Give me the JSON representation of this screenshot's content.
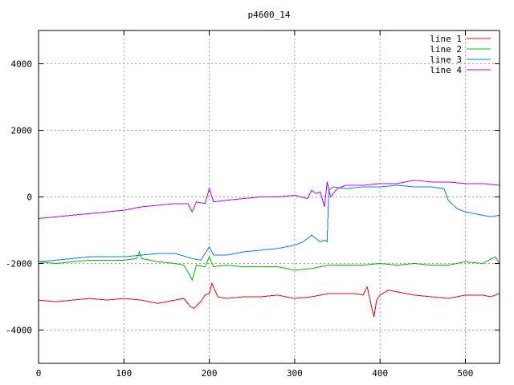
{
  "chart_data": {
    "type": "line",
    "title": "p4600_14",
    "xlabel": "",
    "ylabel": "",
    "xlim": [
      0,
      540
    ],
    "ylim": [
      -5000,
      5000
    ],
    "x_ticks": [
      0,
      100,
      200,
      300,
      400,
      500
    ],
    "y_ticks": [
      -4000,
      -2000,
      0,
      2000,
      4000
    ],
    "grid": true,
    "legend_position": "top-right",
    "series": [
      {
        "name": "line 1",
        "color": "#ff0000",
        "x": [
          0,
          20,
          40,
          60,
          80,
          100,
          120,
          140,
          160,
          170,
          178,
          182,
          190,
          195,
          200,
          203,
          210,
          220,
          240,
          260,
          280,
          300,
          320,
          340,
          360,
          370,
          380,
          385,
          390,
          393,
          396,
          400,
          410,
          420,
          440,
          460,
          480,
          500,
          520,
          530,
          540
        ],
        "y": [
          -3100,
          -3150,
          -3100,
          -3050,
          -3100,
          -3050,
          -3100,
          -3200,
          -3100,
          -3050,
          -3300,
          -3350,
          -3150,
          -2950,
          -2900,
          -2600,
          -3000,
          -3050,
          -3000,
          -3000,
          -2950,
          -3050,
          -3000,
          -2900,
          -2900,
          -2900,
          -2950,
          -2700,
          -3300,
          -3600,
          -3100,
          -2950,
          -2800,
          -2850,
          -2950,
          -3000,
          -3050,
          -2950,
          -2950,
          -3000,
          -2900
        ]
      },
      {
        "name": "line 2",
        "color": "#00c000",
        "x": [
          0,
          20,
          40,
          60,
          80,
          100,
          115,
          118,
          121,
          140,
          160,
          170,
          176,
          180,
          185,
          195,
          200,
          205,
          220,
          240,
          260,
          280,
          300,
          320,
          340,
          360,
          380,
          400,
          420,
          440,
          460,
          480,
          500,
          520,
          535,
          540
        ],
        "y": [
          -1950,
          -2000,
          -1950,
          -1900,
          -1900,
          -1900,
          -1850,
          -1650,
          -1850,
          -1950,
          -2000,
          -2050,
          -2300,
          -2500,
          -2050,
          -2100,
          -1800,
          -2100,
          -2050,
          -2100,
          -2100,
          -2100,
          -2200,
          -2150,
          -2050,
          -2050,
          -2050,
          -2000,
          -2050,
          -2000,
          -2050,
          -2050,
          -1950,
          -2000,
          -1800,
          -2000
        ]
      },
      {
        "name": "line 3",
        "color": "#0080ff",
        "x": [
          0,
          20,
          40,
          60,
          80,
          100,
          120,
          140,
          160,
          180,
          190,
          200,
          205,
          220,
          240,
          260,
          280,
          300,
          310,
          320,
          325,
          330,
          335,
          338,
          340,
          345,
          360,
          380,
          400,
          420,
          440,
          460,
          475,
          480,
          490,
          500,
          510,
          520,
          530,
          540
        ],
        "y": [
          -1950,
          -1900,
          -1850,
          -1800,
          -1800,
          -1800,
          -1750,
          -1700,
          -1700,
          -1850,
          -1900,
          -1500,
          -1750,
          -1750,
          -1650,
          -1600,
          -1550,
          -1450,
          -1350,
          -1150,
          -1250,
          -1350,
          -1300,
          -1350,
          200,
          300,
          250,
          300,
          300,
          350,
          300,
          300,
          250,
          -100,
          -350,
          -450,
          -500,
          -550,
          -600,
          -550
        ]
      },
      {
        "name": "line 4",
        "color": "#c000ff",
        "x": [
          0,
          20,
          40,
          60,
          80,
          100,
          120,
          140,
          160,
          175,
          180,
          185,
          195,
          200,
          205,
          220,
          240,
          260,
          280,
          300,
          315,
          320,
          325,
          330,
          335,
          338,
          342,
          350,
          360,
          380,
          400,
          420,
          440,
          460,
          480,
          500,
          520,
          540
        ],
        "y": [
          -650,
          -600,
          -550,
          -500,
          -450,
          -400,
          -300,
          -250,
          -200,
          -200,
          -450,
          -150,
          -200,
          250,
          -150,
          -100,
          -50,
          0,
          0,
          50,
          -50,
          200,
          100,
          150,
          -300,
          450,
          0,
          250,
          350,
          350,
          400,
          400,
          500,
          450,
          450,
          400,
          400,
          350
        ]
      }
    ]
  }
}
